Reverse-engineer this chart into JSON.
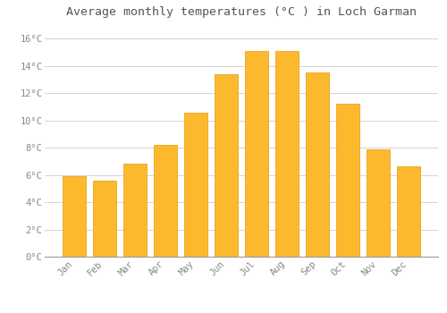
{
  "title": "Average monthly temperatures (°C ) in Loch Garman",
  "months": [
    "Jan",
    "Feb",
    "Mar",
    "Apr",
    "May",
    "Jun",
    "Jul",
    "Aug",
    "Sep",
    "Oct",
    "Nov",
    "Dec"
  ],
  "values": [
    5.9,
    5.6,
    6.8,
    8.2,
    10.6,
    13.4,
    15.1,
    15.1,
    13.5,
    11.2,
    7.9,
    6.6
  ],
  "bar_color": "#FDB92E",
  "bar_edge_color": "#E8A520",
  "background_color": "#FFFFFF",
  "grid_color": "#CCCCCC",
  "title_color": "#555555",
  "tick_label_color": "#888888",
  "ylim": [
    0,
    17
  ],
  "yticks": [
    0,
    2,
    4,
    6,
    8,
    10,
    12,
    14,
    16
  ],
  "ytick_labels": [
    "0°C",
    "2°C",
    "4°C",
    "6°C",
    "8°C",
    "10°C",
    "12°C",
    "14°C",
    "16°C"
  ],
  "title_fontsize": 9.5,
  "tick_fontsize": 7.5,
  "bar_width": 0.75
}
